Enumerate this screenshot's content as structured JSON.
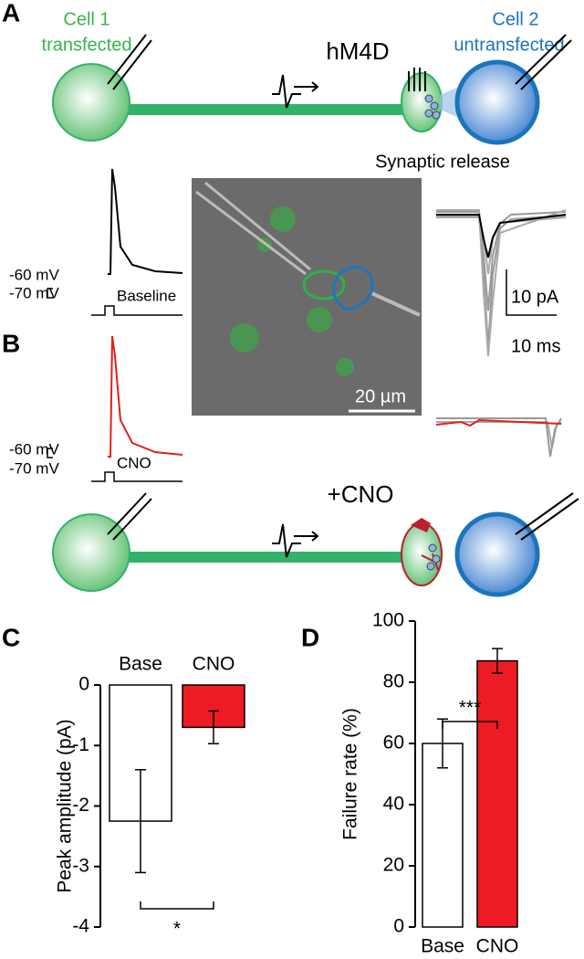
{
  "panel_labels": [
    "A",
    "B",
    "C",
    "D"
  ],
  "diagram": {
    "cell1": "Cell 1",
    "cell1_state": "transfected",
    "cell2": "Cell 2",
    "cell2_state": "untransfected",
    "receptor": "hM4D",
    "release": "Synaptic release",
    "drug": "+CNO"
  },
  "traces": {
    "a": {
      "upper": "-60 mV",
      "lower": "-70 mV",
      "condition": "Baseline"
    },
    "b": {
      "upper": "-60 mV",
      "lower": "-70 mV",
      "condition": "CNO"
    },
    "current_scale": "10 pA",
    "time_scale": "10 ms",
    "image_scale": "20 µm"
  },
  "chart_data": [
    {
      "type": "bar",
      "ylabel": "Peak amplitude (pA)",
      "categories": [
        "Base",
        "CNO"
      ],
      "values": [
        -2.25,
        -0.7
      ],
      "errors": [
        0.85,
        0.27
      ],
      "colors": [
        "#ffffff",
        "#ed1c24"
      ],
      "ylim": [
        -4,
        0
      ],
      "yticks": [
        0,
        -1,
        -2,
        -3,
        -4
      ],
      "annotation": "*"
    },
    {
      "type": "bar",
      "ylabel": "Failure rate (%)",
      "categories": [
        "Base",
        "CNO"
      ],
      "values": [
        60,
        87
      ],
      "errors": [
        8,
        4
      ],
      "colors": [
        "#ffffff",
        "#ed1c24"
      ],
      "ylim": [
        0,
        100
      ],
      "yticks": [
        0,
        20,
        40,
        60,
        80,
        100
      ],
      "annotation": "***"
    }
  ]
}
